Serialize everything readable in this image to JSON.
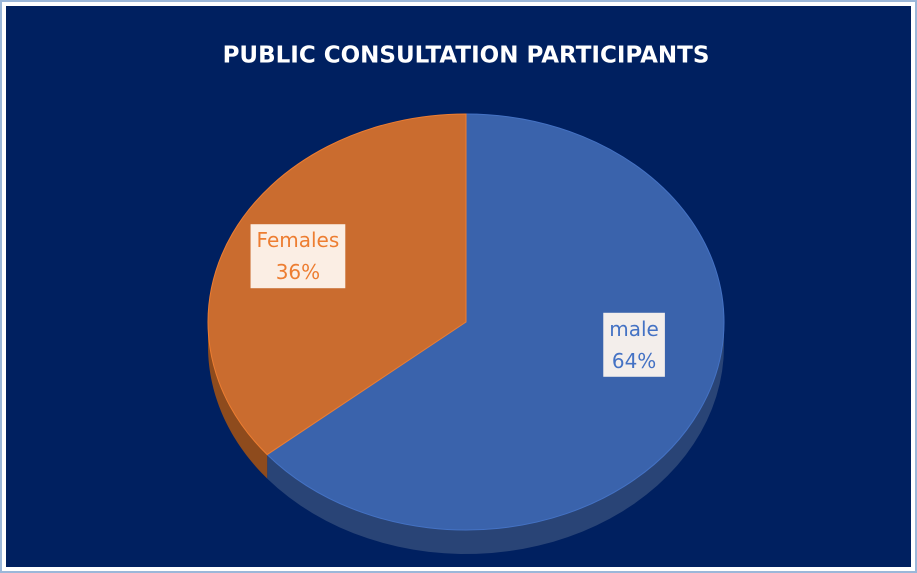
{
  "chart_data": {
    "type": "pie",
    "title": "PUBLIC CONSULTATION PARTICIPANTS",
    "categories": [
      "male",
      "Females"
    ],
    "values": [
      64,
      36
    ],
    "value_labels": [
      "64%",
      "36%"
    ],
    "colors": [
      "#4472c4",
      "#ed7d31"
    ]
  }
}
